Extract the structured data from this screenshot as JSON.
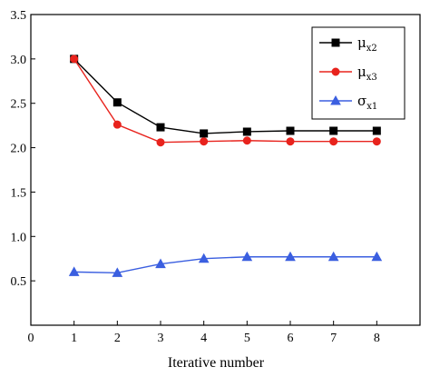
{
  "chart_data": {
    "type": "line",
    "title": "",
    "xlabel": "Iterative number",
    "ylabel": "",
    "xlim": [
      0,
      9
    ],
    "ylim": [
      0,
      3.5
    ],
    "xticks": [
      0,
      1,
      2,
      3,
      4,
      5,
      6,
      7,
      8
    ],
    "yticks": [
      0.5,
      1.0,
      1.5,
      2.0,
      2.5,
      3.0,
      3.5
    ],
    "ytick_labels": [
      "0.5",
      "1.0",
      "1.5",
      "2.0",
      "2.5",
      "3.0",
      "3.5"
    ],
    "grid": false,
    "legend_position": "top-right",
    "x": [
      1,
      2,
      3,
      4,
      5,
      6,
      7,
      8
    ],
    "series": [
      {
        "name": "μx2",
        "name_base": "μ",
        "name_sub": "x2",
        "color": "#000000",
        "marker": "square",
        "values": [
          3.0,
          2.51,
          2.23,
          2.16,
          2.18,
          2.19,
          2.19,
          2.19
        ]
      },
      {
        "name": "μx3",
        "name_base": "μ",
        "name_sub": "x3",
        "color": "#e8231d",
        "marker": "circle",
        "values": [
          3.0,
          2.26,
          2.06,
          2.07,
          2.08,
          2.07,
          2.07,
          2.07
        ]
      },
      {
        "name": "σx1",
        "name_base": "σ",
        "name_sub": "x1",
        "color": "#3b5fe0",
        "marker": "triangle",
        "values": [
          0.6,
          0.59,
          0.69,
          0.75,
          0.77,
          0.77,
          0.77,
          0.77
        ]
      }
    ]
  }
}
